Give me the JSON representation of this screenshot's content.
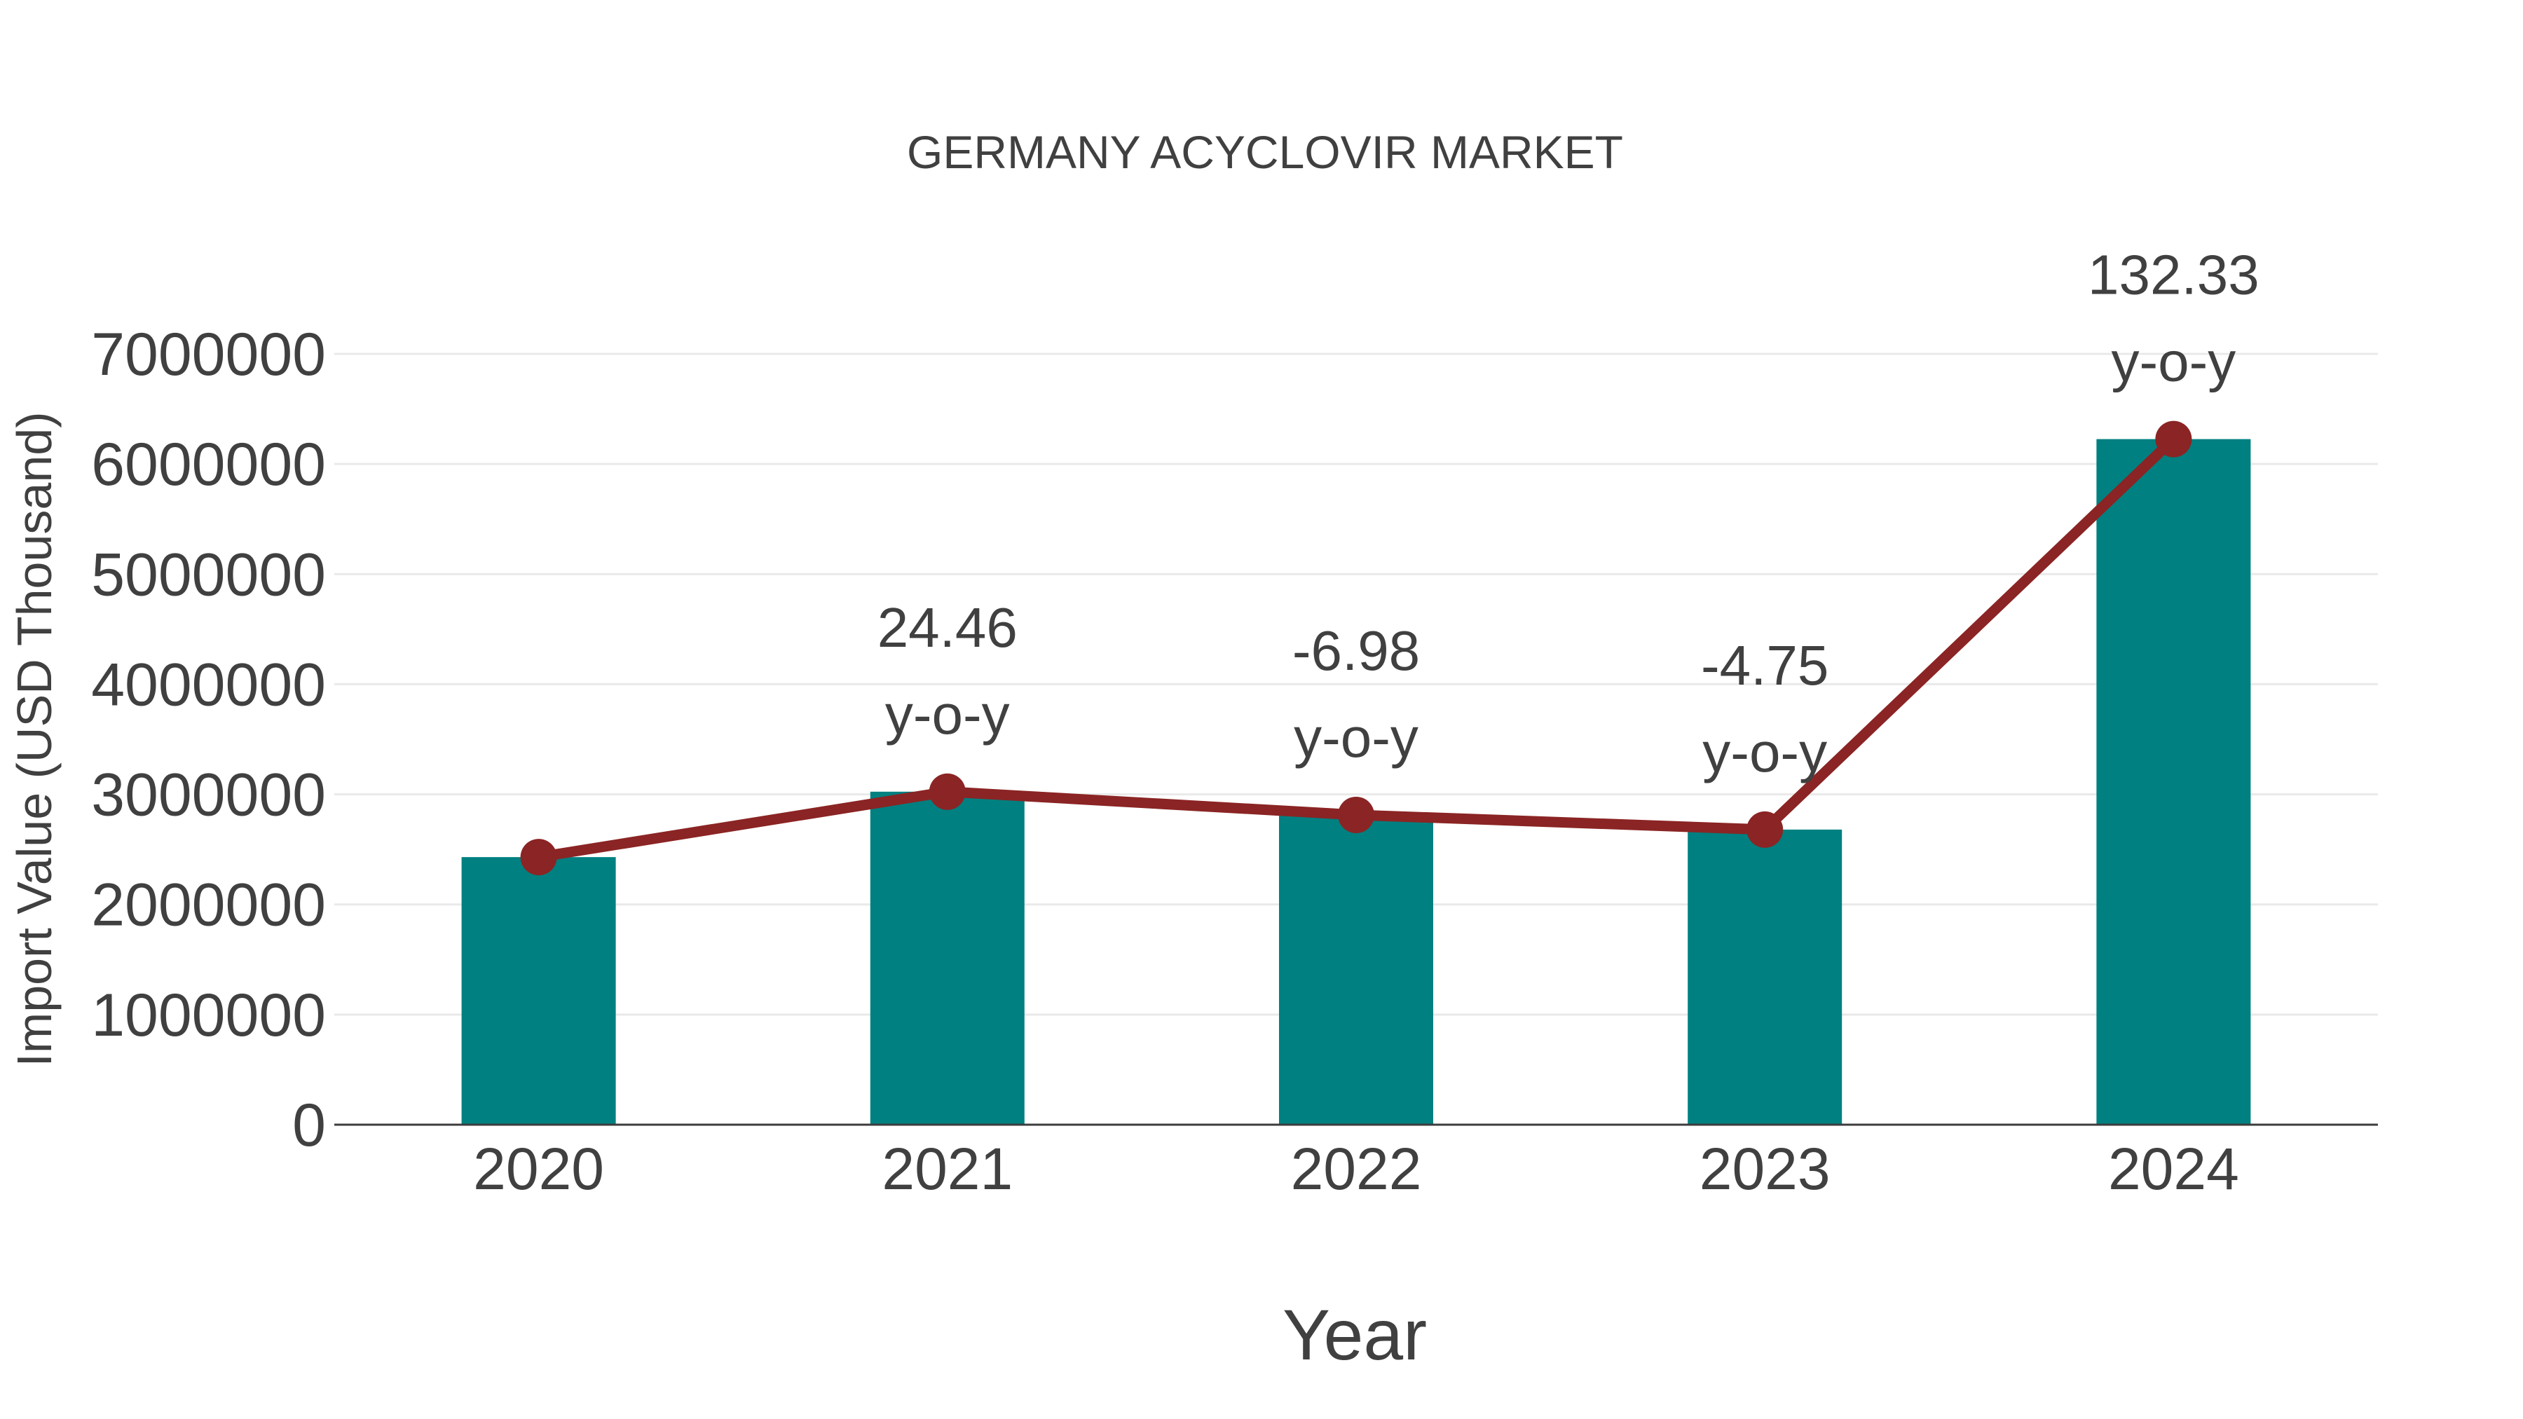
{
  "page": {
    "background": "#ffffff"
  },
  "colors": {
    "bar": "#008080",
    "line": "#8b2424",
    "grid": "#e9e9e9",
    "axis": "#3c3c3c",
    "text": "#404040"
  },
  "chart_data": {
    "type": "bar",
    "title": "GERMANY ACYCLOVIR MARKET",
    "xlabel": "Year",
    "ylabel": "Import Value (USD Thousand)",
    "categories": [
      "2020",
      "2021",
      "2022",
      "2023",
      "2024"
    ],
    "series": [
      {
        "name": "Import Value (USD Thousand)",
        "type": "bar",
        "values": [
          2430000,
          3024000,
          2813000,
          2680000,
          6226000
        ]
      },
      {
        "name": "y-o-y trend line",
        "type": "line",
        "values": [
          2430000,
          3024000,
          2813000,
          2680000,
          6226000
        ]
      }
    ],
    "annotations": [
      {
        "category": "2021",
        "value": "24.46",
        "label": "y-o-y"
      },
      {
        "category": "2022",
        "value": "-6.98",
        "label": "y-o-y"
      },
      {
        "category": "2023",
        "value": "-4.75",
        "label": "y-o-y"
      },
      {
        "category": "2024",
        "value": "132.33",
        "label": "y-o-y"
      }
    ],
    "ylim": [
      0,
      7000000
    ],
    "yticks": [
      0,
      1000000,
      2000000,
      3000000,
      4000000,
      5000000,
      6000000,
      7000000
    ],
    "grid": true,
    "legend": "none"
  }
}
